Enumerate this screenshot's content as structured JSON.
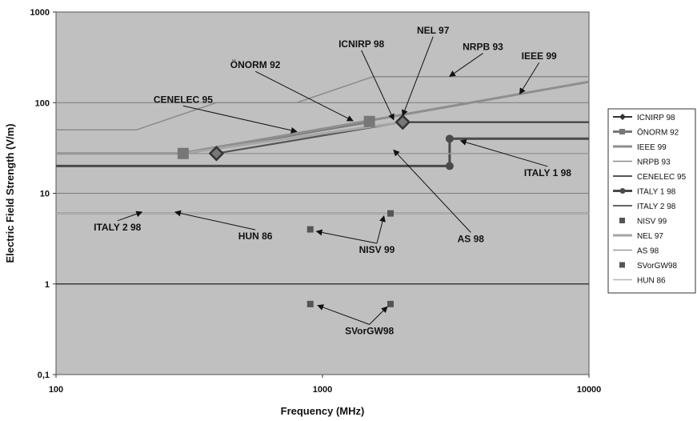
{
  "chart_data": {
    "type": "line",
    "xlabel": "Frequency (MHz)",
    "ylabel": "Electric Field Strength (V/m)",
    "x_scale": "log",
    "y_scale": "log",
    "xlim": [
      100,
      10000
    ],
    "ylim": [
      0.1,
      1000
    ],
    "x_ticks": [
      {
        "value": 100,
        "label": "100"
      },
      {
        "value": 1000,
        "label": "1000"
      },
      {
        "value": 10000,
        "label": "10000"
      }
    ],
    "y_ticks": [
      {
        "value": 0.1,
        "label": "0,1"
      },
      {
        "value": 1,
        "label": "1"
      },
      {
        "value": 10,
        "label": "10"
      },
      {
        "value": 100,
        "label": "100"
      },
      {
        "value": 1000,
        "label": "1000"
      }
    ],
    "grid": true,
    "legend_position": "right",
    "colors": {
      "plot_bg": "#c0c0c0",
      "grid": "#7a7a7a",
      "dark": "#3a3a3a",
      "mid": "#6e6e6e",
      "light": "#9a9a9a",
      "lighter": "#aaaaaa"
    },
    "series": [
      {
        "name": "ICNIRP 98",
        "color": "#333333",
        "width": 2,
        "marker": "diamond",
        "x": [
          400,
          2000,
          10000
        ],
        "y": [
          27.5,
          61,
          61
        ],
        "marker_x": [
          400,
          2000
        ]
      },
      {
        "name": "ÖNORM 92",
        "color": "#777777",
        "width": 4,
        "marker": "square",
        "x": [
          300,
          1500
        ],
        "y": [
          27.5,
          62
        ],
        "marker_x": [
          300,
          1500
        ]
      },
      {
        "name": "IEEE 99",
        "color": "#8e8e8e",
        "width": 3,
        "marker": "none",
        "x": [
          100,
          300,
          10000
        ],
        "y": [
          27.5,
          27.5,
          170
        ]
      },
      {
        "name": "NRPB 93",
        "color": "#8a8a8a",
        "width": 1.5,
        "marker": "none",
        "x": [
          100,
          200,
          400,
          800,
          1550,
          10000
        ],
        "y": [
          50,
          50,
          100,
          100,
          194,
          194
        ]
      },
      {
        "name": "CENELEC 95",
        "color": "#555555",
        "width": 2,
        "marker": "none",
        "x": [
          400,
          2000
        ],
        "y": [
          27.5,
          61
        ]
      },
      {
        "name": "ITALY 1 98",
        "color": "#4a4a4a",
        "width": 3,
        "marker": "circle",
        "x": [
          100,
          3000,
          3000,
          10000
        ],
        "y": [
          20,
          20,
          40,
          40
        ],
        "marker_x": [
          3000
        ]
      },
      {
        "name": "ITALY 2 98",
        "color": "#666666",
        "width": 2,
        "marker": "none",
        "x": [
          100,
          10000
        ],
        "y": [
          6,
          6
        ]
      },
      {
        "name": "NISV 99",
        "color": "#555555",
        "width": 0,
        "marker": "square",
        "x": [
          900,
          1800
        ],
        "y": [
          4,
          6
        ],
        "marker_x": [
          900,
          1800
        ]
      },
      {
        "name": "NEL 97",
        "color": "#a6a6a6",
        "width": 3,
        "marker": "none",
        "x": [
          300,
          2000
        ],
        "y": [
          27.5,
          61
        ]
      },
      {
        "name": "AS 98",
        "color": "#999999",
        "width": 1.5,
        "marker": "none",
        "x": [
          100,
          10000
        ],
        "y": [
          27.5,
          27.5
        ]
      },
      {
        "name": "SVorGW98",
        "color": "#555555",
        "width": 0,
        "marker": "square",
        "x": [
          900,
          1800
        ],
        "y": [
          0.6,
          0.6
        ],
        "marker_x": [
          900,
          1800
        ]
      },
      {
        "name": "HUN 86",
        "color": "#b5b5b5",
        "width": 1.5,
        "marker": "none",
        "x": [
          100,
          10000
        ],
        "y": [
          6,
          6
        ]
      }
    ],
    "annotations": [
      {
        "text": "CENELEC 95",
        "x": 300,
        "y": 100,
        "arrow_to_x": 800,
        "arrow_to_y": 48
      },
      {
        "text": "ÖNORM 92",
        "x": 560,
        "y": 240,
        "arrow_to_x": 1300,
        "arrow_to_y": 63
      },
      {
        "text": "ICNIRP 98",
        "x": 1400,
        "y": 410,
        "arrow_to_x": 1850,
        "arrow_to_y": 65
      },
      {
        "text": "NEL 97",
        "x": 2600,
        "y": 580,
        "arrow_to_x": 2000,
        "arrow_to_y": 72
      },
      {
        "text": "NRPB 93",
        "x": 4000,
        "y": 380,
        "arrow_to_x": 3000,
        "arrow_to_y": 195
      },
      {
        "text": "IEEE 99",
        "x": 6500,
        "y": 300,
        "arrow_to_x": 5500,
        "arrow_to_y": 125
      },
      {
        "text": "ITALY 1 98",
        "x": 7000,
        "y": 15.5,
        "arrow_to_x": 3300,
        "arrow_to_y": 38
      },
      {
        "text": "AS 98",
        "x": 3600,
        "y": 2.9,
        "arrow_to_x": 1850,
        "arrow_to_y": 30
      },
      {
        "text": "ITALY 2 98",
        "x": 170,
        "y": 3.9,
        "arrow_to_x": 210,
        "arrow_to_y": 6.2
      },
      {
        "text": "HUN 86",
        "x": 560,
        "y": 3.1,
        "arrow_to_x": 280,
        "arrow_to_y": 6.2
      },
      {
        "text": "NISV 99",
        "x": 1600,
        "y": 2.2,
        "arrow_to_x": 1700,
        "arrow_to_y": 5.6
      },
      {
        "text": "SVorGW98",
        "x": 1500,
        "y": 0.28,
        "arrow_to_x": 1750,
        "arrow_to_y": 0.56
      },
      {
        "text": "",
        "x": 1500,
        "y": 0.28,
        "arrow_to_x": 960,
        "arrow_to_y": 0.58
      },
      {
        "text": "",
        "x": 1600,
        "y": 2.2,
        "arrow_to_x": 950,
        "arrow_to_y": 3.8
      }
    ]
  }
}
